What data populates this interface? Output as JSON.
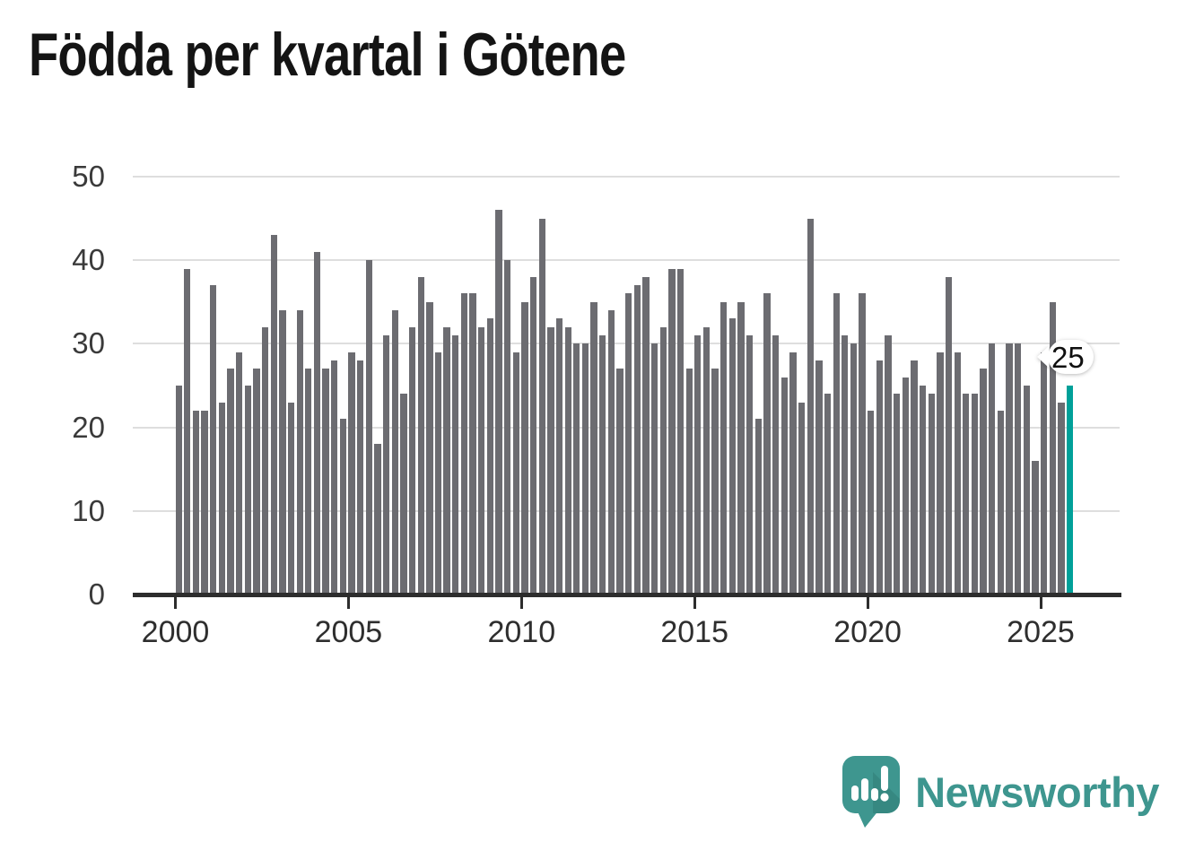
{
  "header": {
    "title": "Födda per kvartal i Götene"
  },
  "chart_data": {
    "type": "bar",
    "title": "Födda per kvartal i Götene",
    "x_frequency": "quarterly",
    "x_range": {
      "start": "2000-Q1",
      "end": "2025-Q4"
    },
    "ylim": [
      0,
      50
    ],
    "yticks": [
      0,
      10,
      20,
      30,
      40,
      50
    ],
    "xticks": [
      2000,
      2005,
      2010,
      2015,
      2020,
      2025
    ],
    "grid": "horizontal",
    "bar_color": "#6C6C71",
    "highlight_color": "#00A099",
    "highlight": {
      "quarter": "2025-Q4",
      "value": 25,
      "label": "25"
    },
    "series": [
      {
        "year": 2000,
        "values": [
          25,
          39,
          22,
          22
        ]
      },
      {
        "year": 2001,
        "values": [
          37,
          23,
          27,
          29
        ]
      },
      {
        "year": 2002,
        "values": [
          25,
          27,
          32,
          43
        ]
      },
      {
        "year": 2003,
        "values": [
          34,
          23,
          34,
          27
        ]
      },
      {
        "year": 2004,
        "values": [
          41,
          27,
          28,
          21
        ]
      },
      {
        "year": 2005,
        "values": [
          29,
          28,
          40,
          18
        ]
      },
      {
        "year": 2006,
        "values": [
          31,
          34,
          24,
          32
        ]
      },
      {
        "year": 2007,
        "values": [
          38,
          35,
          29,
          32
        ]
      },
      {
        "year": 2008,
        "values": [
          31,
          36,
          36,
          32
        ]
      },
      {
        "year": 2009,
        "values": [
          33,
          46,
          40,
          29
        ]
      },
      {
        "year": 2010,
        "values": [
          35,
          38,
          45,
          32
        ]
      },
      {
        "year": 2011,
        "values": [
          33,
          32,
          30,
          30
        ]
      },
      {
        "year": 2012,
        "values": [
          35,
          31,
          34,
          27
        ]
      },
      {
        "year": 2013,
        "values": [
          36,
          37,
          38,
          30
        ]
      },
      {
        "year": 2014,
        "values": [
          32,
          39,
          39,
          27
        ]
      },
      {
        "year": 2015,
        "values": [
          31,
          32,
          27,
          35
        ]
      },
      {
        "year": 2016,
        "values": [
          33,
          35,
          31,
          21
        ]
      },
      {
        "year": 2017,
        "values": [
          36,
          31,
          26,
          29
        ]
      },
      {
        "year": 2018,
        "values": [
          23,
          45,
          28,
          24
        ]
      },
      {
        "year": 2019,
        "values": [
          36,
          31,
          30,
          36
        ]
      },
      {
        "year": 2020,
        "values": [
          22,
          28,
          31,
          24
        ]
      },
      {
        "year": 2021,
        "values": [
          26,
          28,
          25,
          24
        ]
      },
      {
        "year": 2022,
        "values": [
          29,
          38,
          29,
          24
        ]
      },
      {
        "year": 2023,
        "values": [
          24,
          27,
          30,
          22
        ]
      },
      {
        "year": 2024,
        "values": [
          30,
          30,
          25,
          16
        ]
      },
      {
        "year": 2025,
        "values": [
          29,
          35,
          23,
          25
        ]
      }
    ]
  },
  "annotation": {
    "label": "25"
  },
  "branding": {
    "name": "Newsworthy",
    "icon": "newsworthy-speech-bubble-chart-icon",
    "color": "#3E968F",
    "icon_shadow_color": "#2F7D77"
  }
}
